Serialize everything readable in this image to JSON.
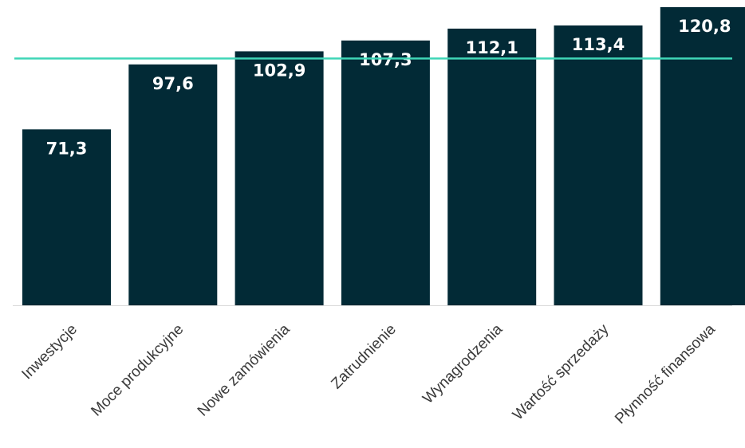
{
  "chart_data": {
    "type": "bar",
    "title": "",
    "xlabel": "",
    "ylabel": "",
    "categories": [
      "Inwestycje",
      "Moce produkcyjne",
      "Nowe zamówienia",
      "Zatrudnienie",
      "Wynagrodzenia",
      "Wartość sprzedaży",
      "Płynność finansowa"
    ],
    "values": [
      71.3,
      97.6,
      102.9,
      107.3,
      112.1,
      113.4,
      120.8
    ],
    "value_labels": [
      "71,3",
      "97,6",
      "102,9",
      "107,3",
      "112,1",
      "113,4",
      "120,8"
    ],
    "reference_line": 100,
    "ylim": [
      0,
      120.8
    ],
    "grid": false,
    "legend": "none",
    "colors": {
      "bar": "#022a36",
      "reference_line": "#3fd6b7",
      "label_text": "#ffffff"
    }
  }
}
